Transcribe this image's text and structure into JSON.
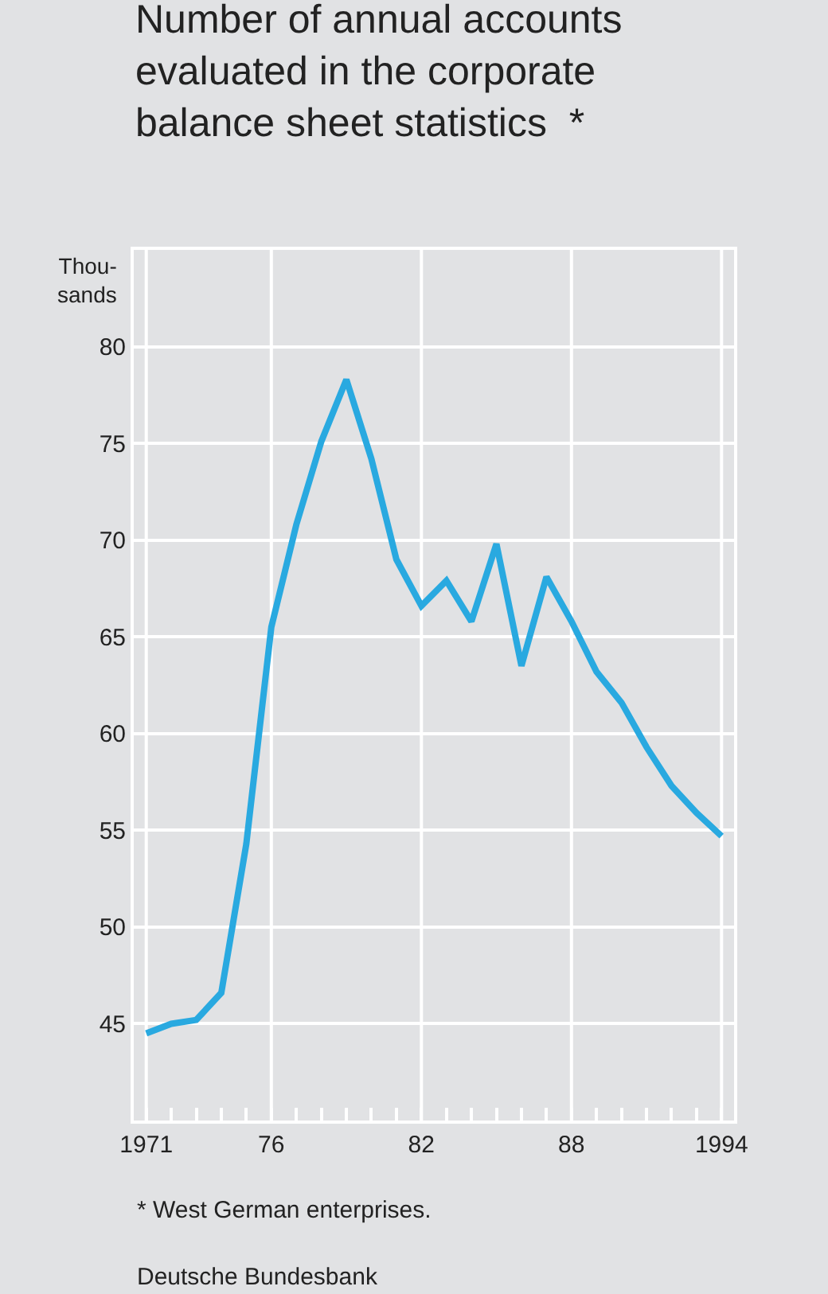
{
  "chart_data": {
    "type": "line",
    "title": "Number of annual accounts\nevaluated in the corporate\nbalance sheet statistics  *",
    "ylabel": "Thou-\nsands",
    "x": [
      1971,
      1972,
      1973,
      1974,
      1975,
      1976,
      1977,
      1978,
      1979,
      1980,
      1981,
      1982,
      1983,
      1984,
      1985,
      1986,
      1987,
      1988,
      1989,
      1990,
      1991,
      1992,
      1993,
      1994
    ],
    "series": [
      {
        "color": "#29a9e0",
        "values": [
          44.5,
          45.0,
          45.2,
          46.6,
          54.3,
          65.5,
          70.8,
          75.1,
          78.3,
          74.2,
          69.0,
          66.6,
          67.9,
          65.8,
          69.8,
          63.5,
          68.1,
          65.8,
          63.2,
          61.6,
          59.3,
          57.3,
          55.9,
          54.7
        ]
      }
    ],
    "xlim": [
      1970.5,
      1994.5
    ],
    "ylim": [
      40,
      85
    ],
    "xticks": [
      1971,
      {
        "value": 1972,
        "label": null
      },
      {
        "value": 1973,
        "label": null
      },
      {
        "value": 1974,
        "label": null
      },
      {
        "value": 1975,
        "label": null
      },
      {
        "value": 1976,
        "label": "76"
      },
      {
        "value": 1977,
        "label": null
      },
      {
        "value": 1978,
        "label": null
      },
      {
        "value": 1979,
        "label": null
      },
      {
        "value": 1980,
        "label": null
      },
      {
        "value": 1981,
        "label": null
      },
      {
        "value": 1982,
        "label": "82"
      },
      {
        "value": 1983,
        "label": null
      },
      {
        "value": 1984,
        "label": null
      },
      {
        "value": 1985,
        "label": null
      },
      {
        "value": 1986,
        "label": null
      },
      {
        "value": 1987,
        "label": null
      },
      {
        "value": 1988,
        "label": "88"
      },
      {
        "value": 1989,
        "label": null
      },
      {
        "value": 1990,
        "label": null
      },
      {
        "value": 1991,
        "label": null
      },
      {
        "value": 1992,
        "label": null
      },
      {
        "value": 1993,
        "label": null
      },
      1994
    ],
    "yticks": [
      45,
      50,
      55,
      60,
      65,
      70,
      75,
      80
    ],
    "grid": true,
    "legend": false,
    "marker": "none",
    "line_style": "solid",
    "annotations": [
      "* West German enterprises.",
      "Deutsche Bundesbank"
    ]
  }
}
